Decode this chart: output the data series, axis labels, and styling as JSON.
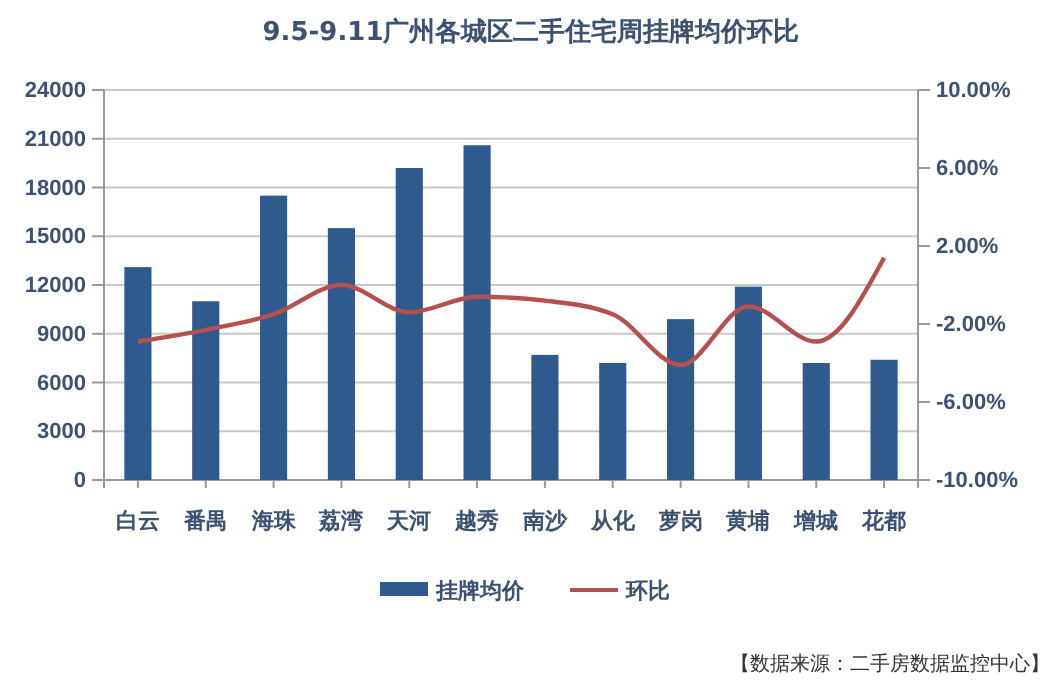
{
  "chart_data": {
    "type": "bar",
    "title": "9.5-9.11广州各城区二手住宅周挂牌均价环比",
    "categories": [
      "白云",
      "番禺",
      "海珠",
      "荔湾",
      "天河",
      "越秀",
      "南沙",
      "从化",
      "萝岗",
      "黄埔",
      "增城",
      "花都"
    ],
    "series": [
      {
        "name": "挂牌均价",
        "color": "#2e5a8e",
        "values": [
          13100,
          11000,
          17500,
          15500,
          19200,
          20600,
          7700,
          7200,
          9900,
          11900,
          7200,
          7400
        ]
      },
      {
        "name": "环比",
        "type": "line",
        "axis": "y2",
        "color": "#b5504d",
        "values": [
          -2.9,
          -2.3,
          -1.5,
          0.0,
          -1.4,
          -0.6,
          -0.8,
          -1.5,
          -4.1,
          -1.1,
          -2.9,
          1.4
        ]
      }
    ],
    "ylim": [
      0,
      24000
    ],
    "yticks": [
      0,
      3000,
      6000,
      9000,
      12000,
      15000,
      18000,
      21000,
      24000
    ],
    "y2lim": [
      -10,
      10
    ],
    "y2ticks": [
      {
        "value": -10,
        "label": "-10.00%"
      },
      {
        "value": -6,
        "label": "-6.00%"
      },
      {
        "value": -2,
        "label": "-2.00%"
      },
      {
        "value": 2,
        "label": "2.00%"
      },
      {
        "value": 6,
        "label": "6.00%"
      },
      {
        "value": 10,
        "label": "10.00%"
      }
    ],
    "grid": "y",
    "legend": "bottom",
    "marker": "none",
    "line_style": "solid",
    "annotations": [
      "【数据来源：二手房数据监控中心】"
    ]
  }
}
